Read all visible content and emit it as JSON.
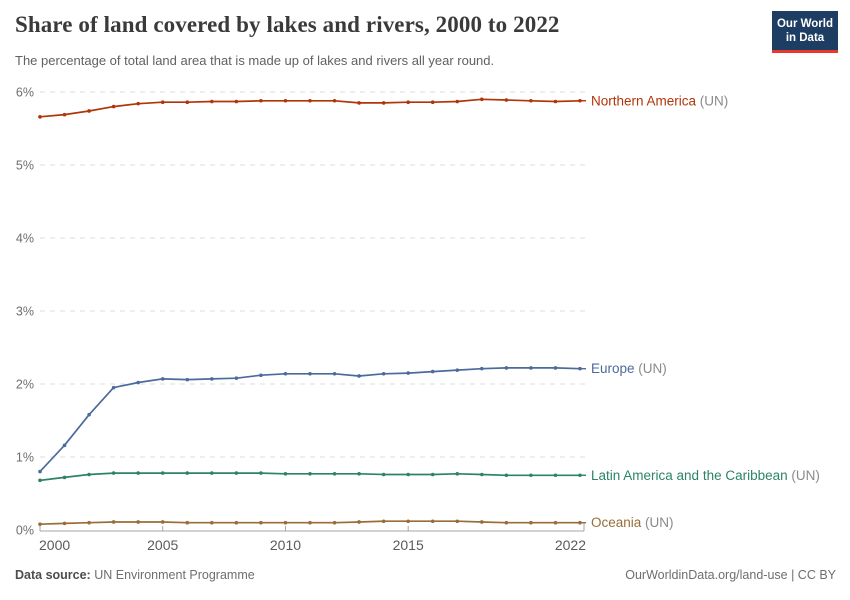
{
  "header": {
    "title": "Share of land covered by lakes and rivers, 2000 to 2022",
    "subtitle": "The percentage of total land area that is made up of lakes and rivers all year round.",
    "logo": {
      "line1": "Our World",
      "line2": "in Data",
      "bg_color": "#1d3d63",
      "accent_color": "#e6392c"
    }
  },
  "chart_data": {
    "type": "line",
    "title": "Share of land covered by lakes and rivers, 2000 to 2022",
    "xlabel": "",
    "ylabel": "",
    "ylim": [
      0,
      6
    ],
    "y_ticks": [
      0,
      1,
      2,
      3,
      4,
      5,
      6
    ],
    "y_tick_suffix": "%",
    "x_ticks": [
      2000,
      2005,
      2010,
      2015,
      2022
    ],
    "grid": "horizontal-dashed",
    "legend_position": "right-edge-labels",
    "x": [
      2000,
      2001,
      2002,
      2003,
      2004,
      2005,
      2006,
      2007,
      2008,
      2009,
      2010,
      2011,
      2012,
      2013,
      2014,
      2015,
      2016,
      2017,
      2018,
      2019,
      2020,
      2021,
      2022
    ],
    "series": [
      {
        "name": "Northern America",
        "suffix": " (UN)",
        "color": "#b13507",
        "values": [
          5.66,
          5.69,
          5.74,
          5.8,
          5.84,
          5.86,
          5.86,
          5.87,
          5.87,
          5.88,
          5.88,
          5.88,
          5.88,
          5.85,
          5.85,
          5.86,
          5.86,
          5.87,
          5.9,
          5.89,
          5.88,
          5.87,
          5.88
        ]
      },
      {
        "name": "Europe",
        "suffix": " (UN)",
        "color": "#4c6a9c",
        "values": [
          0.8,
          1.16,
          1.58,
          1.95,
          2.02,
          2.07,
          2.06,
          2.07,
          2.08,
          2.12,
          2.14,
          2.14,
          2.14,
          2.11,
          2.14,
          2.15,
          2.17,
          2.19,
          2.21,
          2.22,
          2.22,
          2.22,
          2.21
        ]
      },
      {
        "name": "Latin America and the Caribbean",
        "suffix": " (UN)",
        "color": "#2c8465",
        "values": [
          0.68,
          0.72,
          0.76,
          0.78,
          0.78,
          0.78,
          0.78,
          0.78,
          0.78,
          0.78,
          0.77,
          0.77,
          0.77,
          0.77,
          0.76,
          0.76,
          0.76,
          0.77,
          0.76,
          0.75,
          0.75,
          0.75,
          0.75
        ]
      },
      {
        "name": "Oceania",
        "suffix": " (UN)",
        "color": "#996d39",
        "values": [
          0.08,
          0.09,
          0.1,
          0.11,
          0.11,
          0.11,
          0.1,
          0.1,
          0.1,
          0.1,
          0.1,
          0.1,
          0.1,
          0.11,
          0.12,
          0.12,
          0.12,
          0.12,
          0.11,
          0.1,
          0.1,
          0.1,
          0.1
        ]
      }
    ],
    "label_suffix_color": "#8a8a8a",
    "grid_color": "#dcdcdc",
    "axis_color": "#a6a6a6",
    "tick_label_color": "#6e6e6e",
    "x_label_color": "#5b5b5b"
  },
  "footer": {
    "source_label": "Data source:",
    "source_value": "UN Environment Programme",
    "credit": "OurWorldinData.org/land-use | CC BY"
  }
}
